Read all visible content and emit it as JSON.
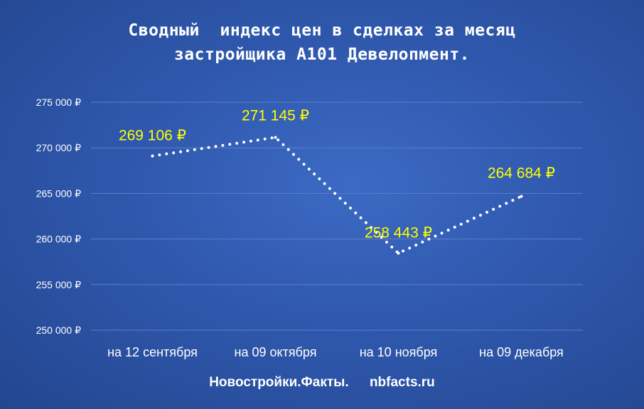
{
  "chart_data": {
    "type": "line",
    "title_lines": [
      "Сводный  индекс цен в сделках за месяц",
      "застройщика А101 Девелопмент."
    ],
    "categories": [
      "на 12 сентября",
      "на 09 октября",
      "на 10 ноября",
      "на 09 декабря"
    ],
    "values": [
      269106,
      271145,
      258443,
      264684
    ],
    "data_labels": [
      "269 106 ₽",
      "271 145 ₽",
      "258 443 ₽",
      "264 684 ₽"
    ],
    "y_ticks": [
      250000,
      255000,
      260000,
      265000,
      270000,
      275000
    ],
    "y_tick_labels": [
      "250 000 ₽",
      "255 000 ₽",
      "260 000 ₽",
      "265 000 ₽",
      "270 000 ₽",
      "275 000 ₽"
    ],
    "ylim": [
      250000,
      275000
    ],
    "grid": true,
    "line_style": "dotted",
    "colors": {
      "line": "#ffffff",
      "data_label": "#ffff00",
      "grid": "#5c7fc8",
      "text": "#ffffff"
    }
  },
  "footer": {
    "brand": "Новостройки.Факты.",
    "site": "nbfacts.ru"
  }
}
